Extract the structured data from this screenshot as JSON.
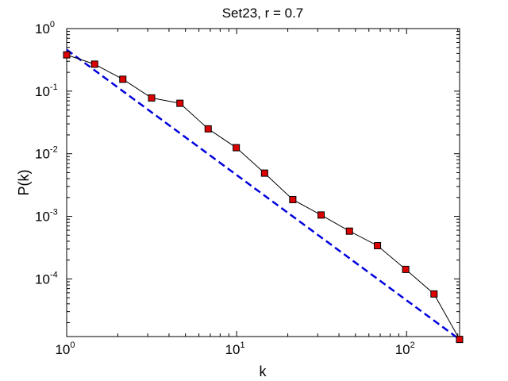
{
  "chart_data": {
    "type": "line",
    "title": "Set23, r = 0.7",
    "xlabel": "k",
    "ylabel": "P(k)",
    "xscale": "log",
    "yscale": "log",
    "xlim": [
      1,
      205
    ],
    "ylim": [
      1.2e-05,
      1
    ],
    "grid": false,
    "x_ticks": [
      {
        "value": 1,
        "base": "10",
        "exp": "0"
      },
      {
        "value": 10,
        "base": "10",
        "exp": "1"
      },
      {
        "value": 100,
        "base": "10",
        "exp": "2"
      }
    ],
    "y_ticks": [
      {
        "value": 1,
        "base": "10",
        "exp": "0"
      },
      {
        "value": 0.1,
        "base": "10",
        "exp": "-1"
      },
      {
        "value": 0.01,
        "base": "10",
        "exp": "-2"
      },
      {
        "value": 0.001,
        "base": "10",
        "exp": "-3"
      },
      {
        "value": 0.0001,
        "base": "10",
        "exp": "-4"
      }
    ],
    "series": [
      {
        "style": "markers-line",
        "line_color": "#000000",
        "marker_color": "#dd0000",
        "x": [
          1.0,
          1.46,
          2.14,
          3.16,
          4.64,
          6.8,
          9.95,
          14.6,
          21.4,
          31.4,
          46.1,
          67.4,
          98.8,
          145,
          205
        ],
        "y": [
          0.38,
          0.27,
          0.155,
          0.078,
          0.064,
          0.025,
          0.0125,
          0.0049,
          0.00185,
          0.00105,
          0.00058,
          0.00034,
          0.000142,
          5.75e-05,
          1.08e-05
        ]
      },
      {
        "style": "dashed",
        "line_color": "#0000dd",
        "x": [
          1.0,
          205
        ],
        "y": [
          0.46,
          1.08e-05
        ]
      }
    ]
  }
}
